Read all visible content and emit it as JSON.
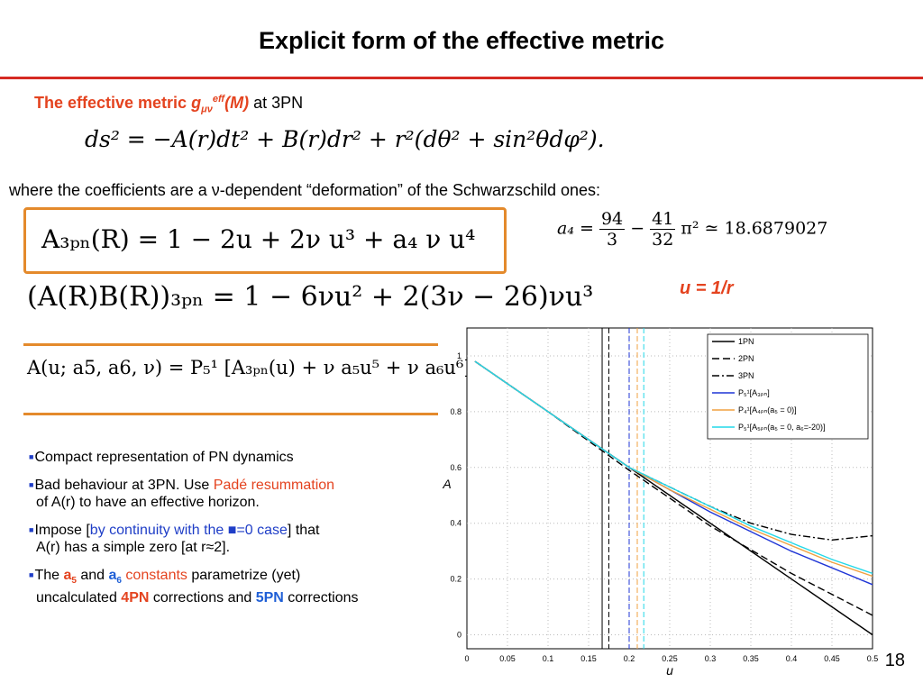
{
  "slide": {
    "title": "Explicit form of the effective metric",
    "page_number": "18"
  },
  "subtitle": {
    "prefix": "The effective metric ",
    "g": "g",
    "sub": "μν",
    "sup": "eff",
    "arg": "(M)",
    "suffix": " at 3PN"
  },
  "equations": {
    "metric": "ds² = −A(r)dt² + B(r)dr² + r²(dθ² + sin²θdφ²).",
    "a3pn": "A₃ₚₙ(R) = 1 − 2u + 2ν u³ + a₄ ν u⁴",
    "ab3pn": "(A(R)B(R))₃ₚₙ = 1 − 6νu² + 2(3ν − 26)νu³",
    "a4_lhs": "a₄ =",
    "a4_n1": "94",
    "a4_d1": "3",
    "a4_mid": "−",
    "a4_n2": "41",
    "a4_d2": "32",
    "a4_rhs": "π² ≃ 18.6879027",
    "pade": "A(u; a5, a6, ν) = P₅¹ [A₃ₚₙ(u) + ν a₅u⁵ + ν a₆u⁶]",
    "u_def": "u = 1/r"
  },
  "where_text": "where the coefficients are a ν-dependent “deformation” of the Schwarzschild ones:",
  "bullets": {
    "b1": "Compact representation  of PN dynamics",
    "b2_a": "Bad behaviour at 3PN. Use ",
    "b2_red": "Padé resummation",
    "b2_b": "of A(r) to have an effective horizon.",
    "b3_a": "Impose [",
    "b3_blue": "by continuity with the ",
    "b3_sym": "■",
    "b3_blue2": "=0 case",
    "b3_b": "] that",
    "b3_c": "A(r) has a simple zero [at r≈2].",
    "b4_a": "The ",
    "b4_a5": "a",
    "b4_a5sub": "5",
    "b4_and": "  and ",
    "b4_a6": "a",
    "b4_a6sub": "6",
    "b4_const": " constants",
    "b4_b": " parametrize (yet)",
    "b4_c": "uncalculated ",
    "b4_4pn": "4PN",
    "b4_d": " corrections and ",
    "b4_5pn": "5PN",
    "b4_e": " corrections"
  },
  "chart_data": {
    "type": "line",
    "xlabel": "u",
    "ylabel": "A",
    "xlim": [
      0,
      0.5
    ],
    "ylim": [
      -0.05,
      1.1
    ],
    "xticks": [
      "0",
      "0.05",
      "0.1",
      "0.15",
      "0.2",
      "0.25",
      "0.3",
      "0.35",
      "0.4",
      "0.45",
      "0.5"
    ],
    "yticks": [
      "0",
      "0.2",
      "0.4",
      "0.6",
      "0.8",
      "1"
    ],
    "grid": true,
    "legend_position": "top-right",
    "legend": [
      "1PN",
      "2PN",
      "3PN",
      "P₅¹[A₃ₚₙ]",
      "P₄¹[A₄ₚₙ(a₅ = 0)]",
      "P₅¹[A₅ₚₙ(a₅ = 0, a₆=-20)]"
    ],
    "series": [
      {
        "name": "1PN",
        "color": "#000000",
        "dash": "solid",
        "x": [
          0.01,
          0.5
        ],
        "y": [
          0.98,
          0.0
        ]
      },
      {
        "name": "2PN",
        "color": "#000000",
        "dash": "dashed",
        "x": [
          0.01,
          0.1,
          0.2,
          0.3,
          0.4,
          0.5
        ],
        "y": [
          0.98,
          0.8,
          0.59,
          0.39,
          0.22,
          0.07
        ]
      },
      {
        "name": "3PN",
        "color": "#000000",
        "dash": "dashdot",
        "x": [
          0.01,
          0.1,
          0.2,
          0.25,
          0.3,
          0.35,
          0.4,
          0.45,
          0.5
        ],
        "y": [
          0.98,
          0.8,
          0.6,
          0.53,
          0.46,
          0.4,
          0.36,
          0.34,
          0.355
        ]
      },
      {
        "name": "P51[A3PN]",
        "color": "#1f35d6",
        "dash": "solid",
        "x": [
          0.01,
          0.1,
          0.2,
          0.25,
          0.3,
          0.35,
          0.4,
          0.45,
          0.5
        ],
        "y": [
          0.98,
          0.8,
          0.6,
          0.52,
          0.44,
          0.37,
          0.3,
          0.24,
          0.18
        ]
      },
      {
        "name": "P41[A4PN(a5=0)]",
        "color": "#f0a040",
        "dash": "solid",
        "x": [
          0.01,
          0.1,
          0.2,
          0.25,
          0.3,
          0.35,
          0.4,
          0.45,
          0.5
        ],
        "y": [
          0.98,
          0.8,
          0.6,
          0.52,
          0.45,
          0.38,
          0.32,
          0.26,
          0.21
        ]
      },
      {
        "name": "P51[A5PN(a5=0,a6=-20)]",
        "color": "#22d8e8",
        "dash": "solid",
        "x": [
          0.01,
          0.1,
          0.2,
          0.25,
          0.3,
          0.35,
          0.4,
          0.45,
          0.5
        ],
        "y": [
          0.98,
          0.8,
          0.6,
          0.53,
          0.46,
          0.39,
          0.33,
          0.27,
          0.22
        ]
      }
    ],
    "vlines": [
      {
        "x": 0.1667,
        "color": "#000000",
        "dash": "solid"
      },
      {
        "x": 0.175,
        "color": "#000000",
        "dash": "dashed"
      },
      {
        "x": 0.2,
        "color": "#1f35d6",
        "dash": "dashed"
      },
      {
        "x": 0.21,
        "color": "#f0a040",
        "dash": "dashed"
      },
      {
        "x": 0.218,
        "color": "#22d8e8",
        "dash": "dashed"
      }
    ]
  }
}
